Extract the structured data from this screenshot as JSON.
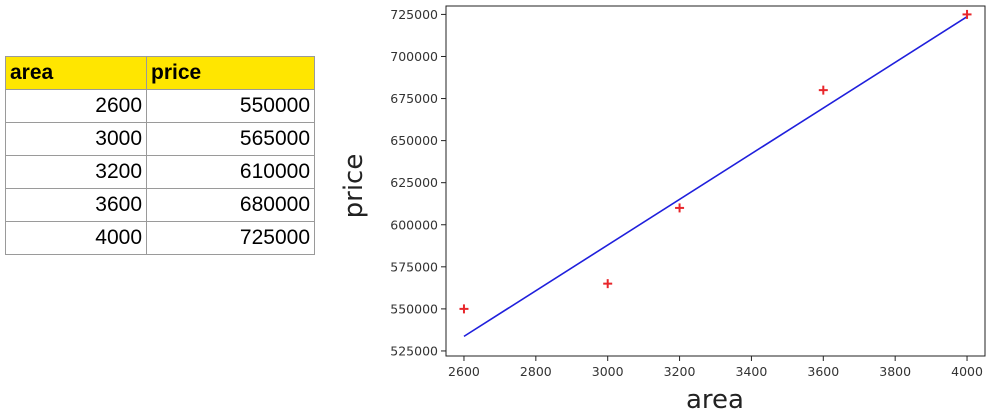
{
  "table": {
    "columns": [
      "area",
      "price"
    ],
    "rows": [
      [
        "2600",
        "550000"
      ],
      [
        "3000",
        "565000"
      ],
      [
        "3200",
        "610000"
      ],
      [
        "3600",
        "680000"
      ],
      [
        "4000",
        "725000"
      ]
    ]
  },
  "chart_data": {
    "type": "scatter",
    "xlabel": "area",
    "ylabel": "price",
    "xlim": [
      2550,
      4050
    ],
    "ylim": [
      522000,
      730000
    ],
    "xticks": [
      2600,
      2800,
      3000,
      3200,
      3400,
      3600,
      3800,
      4000
    ],
    "yticks": [
      525000,
      550000,
      575000,
      600000,
      625000,
      650000,
      675000,
      700000,
      725000
    ],
    "grid": false,
    "series": [
      {
        "marker": "plus",
        "color": "#e8262b",
        "x": [
          2600,
          3000,
          3200,
          3600,
          4000
        ],
        "y": [
          550000,
          565000,
          610000,
          680000,
          725000
        ]
      }
    ],
    "regression_line": {
      "color": "#1f1fdc",
      "x": [
        2600,
        4000
      ],
      "y": [
        533664,
        723630
      ]
    }
  }
}
